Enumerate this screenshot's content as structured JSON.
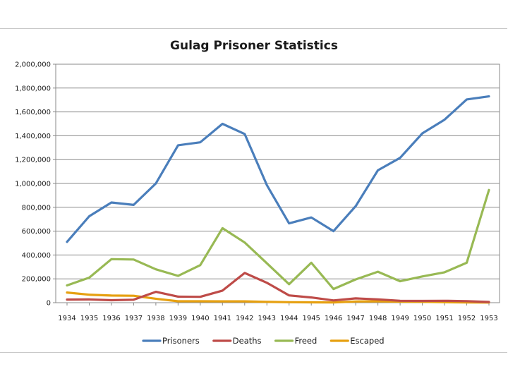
{
  "chart_data": {
    "type": "line",
    "title": "Gulag Prisoner Statistics",
    "xlabel": "",
    "ylabel": "",
    "ylim": [
      0,
      2000000
    ],
    "yticks": [
      0,
      200000,
      400000,
      600000,
      800000,
      1000000,
      1200000,
      1400000,
      1600000,
      1800000,
      2000000
    ],
    "ytick_labels": [
      "0",
      "200,000",
      "400,000",
      "600,000",
      "800,000",
      "1,000,000",
      "1,200,000",
      "1,400,000",
      "1,600,000",
      "1,800,000",
      "2,000,000"
    ],
    "grid": true,
    "legend_position": "bottom",
    "categories": [
      "1934",
      "1935",
      "1936",
      "1937",
      "1938",
      "1939",
      "1940",
      "1941",
      "1942",
      "1943",
      "1944",
      "1945",
      "1946",
      "1947",
      "1948",
      "1949",
      "1950",
      "1951",
      "1952",
      "1953"
    ],
    "series": [
      {
        "name": "Prisoners",
        "color": "#4a7ebb",
        "values": [
          510000,
          725000,
          840000,
          820000,
          1000000,
          1320000,
          1345000,
          1500000,
          1415000,
          985000,
          665000,
          715000,
          600000,
          810000,
          1110000,
          1215000,
          1420000,
          1535000,
          1705000,
          1730000
        ]
      },
      {
        "name": "Deaths",
        "color": "#be4b48",
        "values": [
          26000,
          27000,
          21000,
          25000,
          91000,
          51000,
          49000,
          101000,
          249000,
          167000,
          61000,
          44000,
          19000,
          36000,
          28000,
          16000,
          15000,
          16000,
          13000,
          6000
        ]
      },
      {
        "name": "Freed",
        "color": "#98b954",
        "values": [
          145000,
          210000,
          365000,
          362000,
          280000,
          225000,
          315000,
          625000,
          505000,
          330000,
          155000,
          335000,
          115000,
          195000,
          260000,
          180000,
          220000,
          255000,
          335000,
          945000
        ]
      },
      {
        "name": "Escaped",
        "color": "#e6a010",
        "values": [
          85000,
          67000,
          60000,
          58000,
          33000,
          12000,
          12000,
          11000,
          11000,
          7000,
          4000,
          3000,
          2000,
          10000,
          11000,
          9000,
          7000,
          4000,
          2000,
          1000
        ]
      }
    ]
  }
}
